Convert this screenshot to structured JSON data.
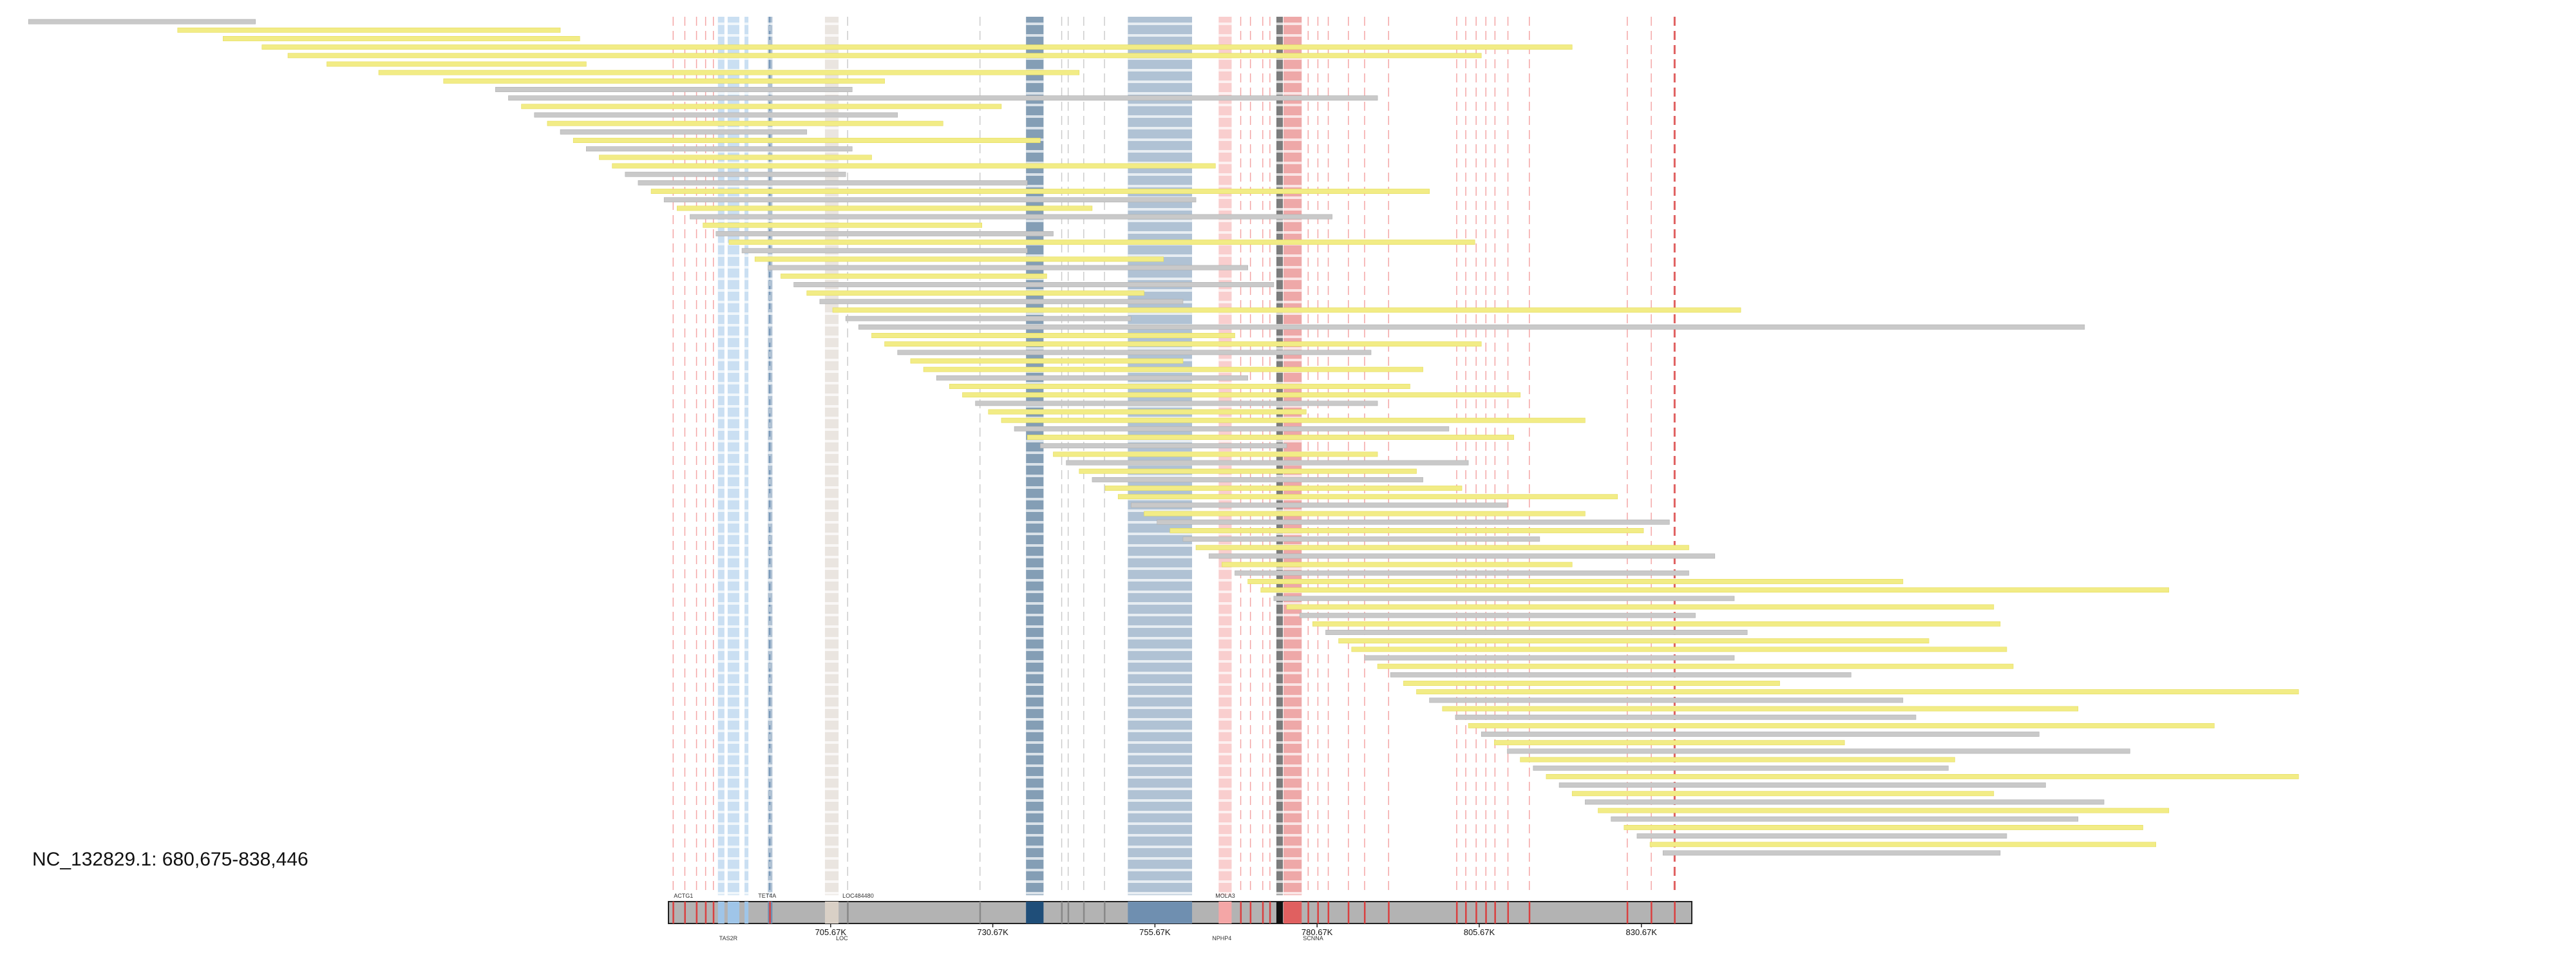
{
  "region": {
    "title": "NC_132829.1: 680,675-838,446",
    "chrom": "NC_132829.1",
    "start": 680675,
    "end": 838446
  },
  "axis": {
    "ticks": [
      {
        "value": 705675,
        "label": "705.67K"
      },
      {
        "value": 730675,
        "label": "730.67K"
      },
      {
        "value": 755675,
        "label": "755.67K"
      },
      {
        "value": 780675,
        "label": "780.67K"
      },
      {
        "value": 805675,
        "label": "805.67K"
      },
      {
        "value": 830675,
        "label": "830.67K"
      }
    ]
  },
  "colors": {
    "read_yellow": "#f2ec86",
    "read_gray": "#c9c9c9",
    "ideogram_gray": "#b3b3b3",
    "blue_dark": "#1f4e79",
    "blue_steel": "#6f8fb0",
    "blue_light": "#9fc5e8",
    "red_mark": "#e06060",
    "red_soft": "#f4a6a6",
    "beige": "#d9d0c6"
  },
  "gene_labels": [
    {
      "pos": 681500,
      "text": "ACTG1"
    },
    {
      "pos": 688500,
      "text": "TAS2R"
    },
    {
      "pos": 694500,
      "text": "TET4A"
    },
    {
      "pos": 706500,
      "text": "LOC"
    },
    {
      "pos": 707500,
      "text": "LOC484480"
    },
    {
      "pos": 764500,
      "text": "NPHP4"
    },
    {
      "pos": 765000,
      "text": "MOLA3"
    },
    {
      "pos": 778500,
      "text": "SCNNA"
    }
  ],
  "features": [
    {
      "start": 688300,
      "end": 689300,
      "color": "#9fc5e8"
    },
    {
      "start": 689800,
      "end": 691600,
      "color": "#9fc5e8"
    },
    {
      "start": 692400,
      "end": 693000,
      "color": "#9fc5e8"
    },
    {
      "start": 696000,
      "end": 696700,
      "color": "#6f8fb0"
    },
    {
      "start": 704800,
      "end": 706900,
      "color": "#d9d0c6"
    },
    {
      "start": 735800,
      "end": 738500,
      "color": "#1f4e79"
    },
    {
      "start": 751500,
      "end": 761400,
      "color": "#6f8fb0"
    },
    {
      "start": 765500,
      "end": 767500,
      "color": "#f4a6a6"
    },
    {
      "start": 774400,
      "end": 775400,
      "color": "#111111"
    },
    {
      "start": 775500,
      "end": 778300,
      "color": "#e06060"
    }
  ],
  "marks": [
    {
      "pos": 681400,
      "color": "#f4a6a6"
    },
    {
      "pos": 683200,
      "color": "#f4a6a6"
    },
    {
      "pos": 685000,
      "color": "#f4a6a6"
    },
    {
      "pos": 686400,
      "color": "#f4a6a6"
    },
    {
      "pos": 687600,
      "color": "#f4a6a6"
    },
    {
      "pos": 696300,
      "color": "#4b79a8"
    },
    {
      "pos": 708300,
      "color": "#cccccc"
    },
    {
      "pos": 728700,
      "color": "#cccccc"
    },
    {
      "pos": 741300,
      "color": "#cccccc"
    },
    {
      "pos": 742300,
      "color": "#cccccc"
    },
    {
      "pos": 744700,
      "color": "#cccccc"
    },
    {
      "pos": 747900,
      "color": "#cccccc"
    },
    {
      "pos": 768900,
      "color": "#f4a6a6"
    },
    {
      "pos": 770400,
      "color": "#f4a6a6"
    },
    {
      "pos": 772300,
      "color": "#f4a6a6"
    },
    {
      "pos": 773400,
      "color": "#f4a6a6"
    },
    {
      "pos": 779300,
      "color": "#f4a6a6"
    },
    {
      "pos": 780800,
      "color": "#f4a6a6"
    },
    {
      "pos": 782400,
      "color": "#f4a6a6"
    },
    {
      "pos": 785500,
      "color": "#f4a6a6"
    },
    {
      "pos": 788000,
      "color": "#f4a6a6"
    },
    {
      "pos": 791700,
      "color": "#f4a6a6"
    },
    {
      "pos": 802200,
      "color": "#f4a6a6"
    },
    {
      "pos": 803600,
      "color": "#f4a6a6"
    },
    {
      "pos": 805200,
      "color": "#f4a6a6"
    },
    {
      "pos": 806700,
      "color": "#f4a6a6"
    },
    {
      "pos": 808100,
      "color": "#f4a6a6"
    },
    {
      "pos": 810100,
      "color": "#f4a6a6"
    },
    {
      "pos": 813400,
      "color": "#f4a6a6"
    },
    {
      "pos": 828500,
      "color": "#f4a6a6"
    },
    {
      "pos": 832200,
      "color": "#f4a6a6"
    },
    {
      "pos": 835800,
      "color": "#e06060"
    }
  ],
  "reads": [
    {
      "start": 582000,
      "end": 617000,
      "color": "#c9c9c9"
    },
    {
      "start": 605000,
      "end": 664000,
      "color": "#f2ec86"
    },
    {
      "start": 612000,
      "end": 667000,
      "color": "#f2ec86"
    },
    {
      "start": 618000,
      "end": 820000,
      "color": "#f2ec86"
    },
    {
      "start": 622000,
      "end": 806000,
      "color": "#f2ec86"
    },
    {
      "start": 628000,
      "end": 668000,
      "color": "#f2ec86"
    },
    {
      "start": 636000,
      "end": 744000,
      "color": "#f2ec86"
    },
    {
      "start": 646000,
      "end": 714000,
      "color": "#f2ec86"
    },
    {
      "start": 654000,
      "end": 709000,
      "color": "#c9c9c9"
    },
    {
      "start": 656000,
      "end": 790000,
      "color": "#c9c9c9"
    },
    {
      "start": 658000,
      "end": 732000,
      "color": "#f2ec86"
    },
    {
      "start": 660000,
      "end": 716000,
      "color": "#c9c9c9"
    },
    {
      "start": 662000,
      "end": 723000,
      "color": "#f2ec86"
    },
    {
      "start": 664000,
      "end": 702000,
      "color": "#c9c9c9"
    },
    {
      "start": 666000,
      "end": 738000,
      "color": "#f2ec86"
    },
    {
      "start": 668000,
      "end": 709000,
      "color": "#c9c9c9"
    },
    {
      "start": 670000,
      "end": 712000,
      "color": "#f2ec86"
    },
    {
      "start": 672000,
      "end": 765000,
      "color": "#f2ec86"
    },
    {
      "start": 674000,
      "end": 708000,
      "color": "#c9c9c9"
    },
    {
      "start": 676000,
      "end": 736000,
      "color": "#c9c9c9"
    },
    {
      "start": 678000,
      "end": 798000,
      "color": "#f2ec86"
    },
    {
      "start": 680000,
      "end": 762000,
      "color": "#c9c9c9"
    },
    {
      "start": 682000,
      "end": 746000,
      "color": "#f2ec86"
    },
    {
      "start": 684000,
      "end": 783000,
      "color": "#c9c9c9"
    },
    {
      "start": 686000,
      "end": 729000,
      "color": "#f2ec86"
    },
    {
      "start": 688000,
      "end": 740000,
      "color": "#c9c9c9"
    },
    {
      "start": 690000,
      "end": 805000,
      "color": "#f2ec86"
    },
    {
      "start": 692000,
      "end": 736000,
      "color": "#c9c9c9"
    },
    {
      "start": 694000,
      "end": 757000,
      "color": "#f2ec86"
    },
    {
      "start": 696000,
      "end": 770000,
      "color": "#c9c9c9"
    },
    {
      "start": 698000,
      "end": 739000,
      "color": "#f2ec86"
    },
    {
      "start": 700000,
      "end": 774000,
      "color": "#c9c9c9"
    },
    {
      "start": 702000,
      "end": 754000,
      "color": "#f2ec86"
    },
    {
      "start": 704000,
      "end": 760000,
      "color": "#c9c9c9"
    },
    {
      "start": 706000,
      "end": 846000,
      "color": "#f2ec86"
    },
    {
      "start": 708000,
      "end": 752000,
      "color": "#c9c9c9"
    },
    {
      "start": 710000,
      "end": 899000,
      "color": "#c9c9c9"
    },
    {
      "start": 712000,
      "end": 768000,
      "color": "#f2ec86"
    },
    {
      "start": 714000,
      "end": 806000,
      "color": "#f2ec86"
    },
    {
      "start": 716000,
      "end": 789000,
      "color": "#c9c9c9"
    },
    {
      "start": 718000,
      "end": 760000,
      "color": "#f2ec86"
    },
    {
      "start": 720000,
      "end": 797000,
      "color": "#f2ec86"
    },
    {
      "start": 722000,
      "end": 770000,
      "color": "#c9c9c9"
    },
    {
      "start": 724000,
      "end": 795000,
      "color": "#f2ec86"
    },
    {
      "start": 726000,
      "end": 812000,
      "color": "#f2ec86"
    },
    {
      "start": 728000,
      "end": 790000,
      "color": "#c9c9c9"
    },
    {
      "start": 730000,
      "end": 779000,
      "color": "#f2ec86"
    },
    {
      "start": 732000,
      "end": 822000,
      "color": "#f2ec86"
    },
    {
      "start": 734000,
      "end": 801000,
      "color": "#c9c9c9"
    },
    {
      "start": 736000,
      "end": 811000,
      "color": "#f2ec86"
    },
    {
      "start": 738000,
      "end": 776000,
      "color": "#c9c9c9"
    },
    {
      "start": 740000,
      "end": 790000,
      "color": "#f2ec86"
    },
    {
      "start": 742000,
      "end": 804000,
      "color": "#c9c9c9"
    },
    {
      "start": 744000,
      "end": 796000,
      "color": "#f2ec86"
    },
    {
      "start": 746000,
      "end": 797000,
      "color": "#c9c9c9"
    },
    {
      "start": 748000,
      "end": 803000,
      "color": "#f2ec86"
    },
    {
      "start": 750000,
      "end": 827000,
      "color": "#f2ec86"
    },
    {
      "start": 752000,
      "end": 810000,
      "color": "#c9c9c9"
    },
    {
      "start": 754000,
      "end": 822000,
      "color": "#f2ec86"
    },
    {
      "start": 756000,
      "end": 835000,
      "color": "#c9c9c9"
    },
    {
      "start": 758000,
      "end": 831000,
      "color": "#f2ec86"
    },
    {
      "start": 760000,
      "end": 815000,
      "color": "#c9c9c9"
    },
    {
      "start": 762000,
      "end": 838000,
      "color": "#f2ec86"
    },
    {
      "start": 764000,
      "end": 842000,
      "color": "#c9c9c9"
    },
    {
      "start": 766000,
      "end": 820000,
      "color": "#f2ec86"
    },
    {
      "start": 768000,
      "end": 838000,
      "color": "#c9c9c9"
    },
    {
      "start": 770000,
      "end": 871000,
      "color": "#f2ec86"
    },
    {
      "start": 772000,
      "end": 912000,
      "color": "#f2ec86"
    },
    {
      "start": 774000,
      "end": 845000,
      "color": "#c9c9c9"
    },
    {
      "start": 776000,
      "end": 885000,
      "color": "#f2ec86"
    },
    {
      "start": 778000,
      "end": 839000,
      "color": "#c9c9c9"
    },
    {
      "start": 780000,
      "end": 886000,
      "color": "#f2ec86"
    },
    {
      "start": 782000,
      "end": 847000,
      "color": "#c9c9c9"
    },
    {
      "start": 784000,
      "end": 875000,
      "color": "#f2ec86"
    },
    {
      "start": 786000,
      "end": 887000,
      "color": "#f2ec86"
    },
    {
      "start": 788000,
      "end": 845000,
      "color": "#c9c9c9"
    },
    {
      "start": 790000,
      "end": 888000,
      "color": "#f2ec86"
    },
    {
      "start": 792000,
      "end": 863000,
      "color": "#c9c9c9"
    },
    {
      "start": 794000,
      "end": 852000,
      "color": "#f2ec86"
    },
    {
      "start": 796000,
      "end": 932000,
      "color": "#f2ec86"
    },
    {
      "start": 798000,
      "end": 871000,
      "color": "#c9c9c9"
    },
    {
      "start": 800000,
      "end": 898000,
      "color": "#f2ec86"
    },
    {
      "start": 802000,
      "end": 873000,
      "color": "#c9c9c9"
    },
    {
      "start": 804000,
      "end": 919000,
      "color": "#f2ec86"
    },
    {
      "start": 806000,
      "end": 892000,
      "color": "#c9c9c9"
    },
    {
      "start": 808000,
      "end": 862000,
      "color": "#f2ec86"
    },
    {
      "start": 810000,
      "end": 906000,
      "color": "#c9c9c9"
    },
    {
      "start": 812000,
      "end": 879000,
      "color": "#f2ec86"
    },
    {
      "start": 814000,
      "end": 878000,
      "color": "#c9c9c9"
    },
    {
      "start": 816000,
      "end": 932000,
      "color": "#f2ec86"
    },
    {
      "start": 818000,
      "end": 893000,
      "color": "#c9c9c9"
    },
    {
      "start": 820000,
      "end": 885000,
      "color": "#f2ec86"
    },
    {
      "start": 822000,
      "end": 902000,
      "color": "#c9c9c9"
    },
    {
      "start": 824000,
      "end": 912000,
      "color": "#f2ec86"
    },
    {
      "start": 826000,
      "end": 898000,
      "color": "#c9c9c9"
    },
    {
      "start": 828000,
      "end": 908000,
      "color": "#f2ec86"
    },
    {
      "start": 830000,
      "end": 887000,
      "color": "#c9c9c9"
    },
    {
      "start": 832000,
      "end": 910000,
      "color": "#f2ec86"
    },
    {
      "start": 834000,
      "end": 886000,
      "color": "#c9c9c9"
    }
  ]
}
